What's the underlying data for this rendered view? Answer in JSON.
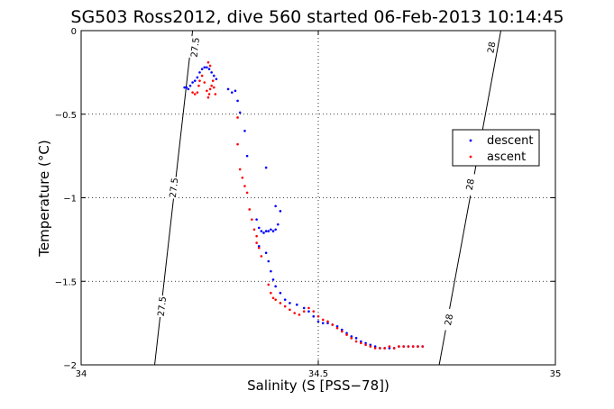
{
  "chart_data": {
    "type": "scatter",
    "title": "SG503 Ross2012, dive 560 started 06-Feb-2013 10:14:45",
    "xlabel": "Salinity (S [PSS−78])",
    "ylabel": "Temperature (°C)",
    "xlim": [
      34,
      35
    ],
    "ylim": [
      -2,
      0
    ],
    "xticks": [
      34,
      34.5,
      35
    ],
    "xtick_labels": [
      "34",
      "34.5",
      "35"
    ],
    "yticks": [
      -2,
      -1.5,
      -1,
      -0.5,
      0
    ],
    "ytick_labels": [
      "−2",
      "−1.5",
      "−1",
      "−0.5",
      "0"
    ],
    "grid": true,
    "legend_position": "right",
    "isopycnals": [
      {
        "label": "27.5",
        "start": [
          34.155,
          -2.0
        ],
        "end": [
          34.235,
          0.0
        ],
        "label_points": [
          [
            34.17,
            -1.65
          ],
          [
            34.195,
            -0.94
          ],
          [
            34.24,
            -0.1
          ]
        ]
      },
      {
        "label": "28",
        "start": [
          34.755,
          -2.0
        ],
        "end": [
          34.885,
          0.0
        ],
        "label_points": [
          [
            34.775,
            -1.73
          ],
          [
            34.82,
            -0.92
          ],
          [
            34.865,
            -0.1
          ]
        ]
      }
    ],
    "series": [
      {
        "name": "descent",
        "color": "#0000ff",
        "points": [
          [
            34.218,
            -0.34
          ],
          [
            34.222,
            -0.34
          ],
          [
            34.226,
            -0.35
          ],
          [
            34.23,
            -0.33
          ],
          [
            34.235,
            -0.31
          ],
          [
            34.24,
            -0.3
          ],
          [
            34.245,
            -0.28
          ],
          [
            34.25,
            -0.25
          ],
          [
            34.255,
            -0.23
          ],
          [
            34.26,
            -0.22
          ],
          [
            34.265,
            -0.22
          ],
          [
            34.27,
            -0.23
          ],
          [
            34.275,
            -0.25
          ],
          [
            34.28,
            -0.27
          ],
          [
            34.285,
            -0.29
          ],
          [
            34.31,
            -0.35
          ],
          [
            34.318,
            -0.37
          ],
          [
            34.325,
            -0.36
          ],
          [
            34.33,
            -0.42
          ],
          [
            34.335,
            -0.49
          ],
          [
            34.345,
            -0.6
          ],
          [
            34.35,
            -0.75
          ],
          [
            34.39,
            -0.82
          ],
          [
            34.41,
            -1.05
          ],
          [
            34.37,
            -1.13
          ],
          [
            34.375,
            -1.18
          ],
          [
            34.38,
            -1.2
          ],
          [
            34.385,
            -1.21
          ],
          [
            34.39,
            -1.2
          ],
          [
            34.395,
            -1.2
          ],
          [
            34.4,
            -1.19
          ],
          [
            34.405,
            -1.2
          ],
          [
            34.41,
            -1.19
          ],
          [
            34.415,
            -1.16
          ],
          [
            34.42,
            -1.08
          ],
          [
            34.375,
            -1.29
          ],
          [
            34.39,
            -1.33
          ],
          [
            34.395,
            -1.38
          ],
          [
            34.4,
            -1.44
          ],
          [
            34.405,
            -1.49
          ],
          [
            34.41,
            -1.53
          ],
          [
            34.42,
            -1.57
          ],
          [
            34.43,
            -1.61
          ],
          [
            34.44,
            -1.63
          ],
          [
            34.455,
            -1.64
          ],
          [
            34.47,
            -1.66
          ],
          [
            34.48,
            -1.68
          ],
          [
            34.49,
            -1.71
          ],
          [
            34.5,
            -1.74
          ],
          [
            34.51,
            -1.75
          ],
          [
            34.52,
            -1.75
          ],
          [
            34.53,
            -1.76
          ],
          [
            34.54,
            -1.77
          ],
          [
            34.55,
            -1.79
          ],
          [
            34.56,
            -1.81
          ],
          [
            34.57,
            -1.83
          ],
          [
            34.58,
            -1.84
          ],
          [
            34.59,
            -1.86
          ],
          [
            34.6,
            -1.87
          ],
          [
            34.61,
            -1.88
          ],
          [
            34.62,
            -1.89
          ],
          [
            34.63,
            -1.9
          ],
          [
            34.64,
            -1.9
          ],
          [
            34.65,
            -1.9
          ],
          [
            34.66,
            -1.9
          ],
          [
            34.67,
            -1.89
          ],
          [
            34.68,
            -1.89
          ],
          [
            34.69,
            -1.89
          ],
          [
            34.7,
            -1.89
          ],
          [
            34.71,
            -1.89
          ],
          [
            34.72,
            -1.89
          ]
        ]
      },
      {
        "name": "ascent",
        "color": "#ff0000",
        "points": [
          [
            34.235,
            -0.37
          ],
          [
            34.24,
            -0.38
          ],
          [
            34.245,
            -0.37
          ],
          [
            34.248,
            -0.33
          ],
          [
            34.25,
            -0.3
          ],
          [
            34.255,
            -0.27
          ],
          [
            34.26,
            -0.31
          ],
          [
            34.265,
            -0.36
          ],
          [
            34.268,
            -0.4
          ],
          [
            34.27,
            -0.38
          ],
          [
            34.272,
            -0.35
          ],
          [
            34.275,
            -0.33
          ],
          [
            34.278,
            -0.3
          ],
          [
            34.28,
            -0.34
          ],
          [
            34.283,
            -0.38
          ],
          [
            34.268,
            -0.19
          ],
          [
            34.272,
            -0.21
          ],
          [
            34.33,
            -0.52
          ],
          [
            34.33,
            -0.68
          ],
          [
            34.335,
            -0.83
          ],
          [
            34.34,
            -0.88
          ],
          [
            34.345,
            -0.93
          ],
          [
            34.35,
            -0.97
          ],
          [
            34.355,
            -1.07
          ],
          [
            34.36,
            -1.13
          ],
          [
            34.365,
            -1.19
          ],
          [
            34.37,
            -1.23
          ],
          [
            34.37,
            -1.27
          ],
          [
            34.375,
            -1.3
          ],
          [
            34.38,
            -1.35
          ],
          [
            34.395,
            -1.52
          ],
          [
            34.4,
            -1.57
          ],
          [
            34.405,
            -1.6
          ],
          [
            34.41,
            -1.61
          ],
          [
            34.42,
            -1.63
          ],
          [
            34.43,
            -1.65
          ],
          [
            34.44,
            -1.67
          ],
          [
            34.45,
            -1.69
          ],
          [
            34.46,
            -1.7
          ],
          [
            34.47,
            -1.68
          ],
          [
            34.48,
            -1.66
          ],
          [
            34.49,
            -1.68
          ],
          [
            34.5,
            -1.71
          ],
          [
            34.51,
            -1.73
          ],
          [
            34.52,
            -1.74
          ],
          [
            34.53,
            -1.76
          ],
          [
            34.54,
            -1.78
          ],
          [
            34.55,
            -1.8
          ],
          [
            34.56,
            -1.82
          ],
          [
            34.57,
            -1.84
          ],
          [
            34.58,
            -1.86
          ],
          [
            34.59,
            -1.87
          ],
          [
            34.6,
            -1.88
          ],
          [
            34.61,
            -1.89
          ],
          [
            34.62,
            -1.9
          ],
          [
            34.63,
            -1.9
          ],
          [
            34.64,
            -1.9
          ],
          [
            34.65,
            -1.89
          ],
          [
            34.66,
            -1.9
          ],
          [
            34.67,
            -1.89
          ],
          [
            34.68,
            -1.89
          ],
          [
            34.69,
            -1.89
          ],
          [
            34.7,
            -1.89
          ],
          [
            34.71,
            -1.89
          ],
          [
            34.72,
            -1.89
          ]
        ]
      }
    ]
  }
}
